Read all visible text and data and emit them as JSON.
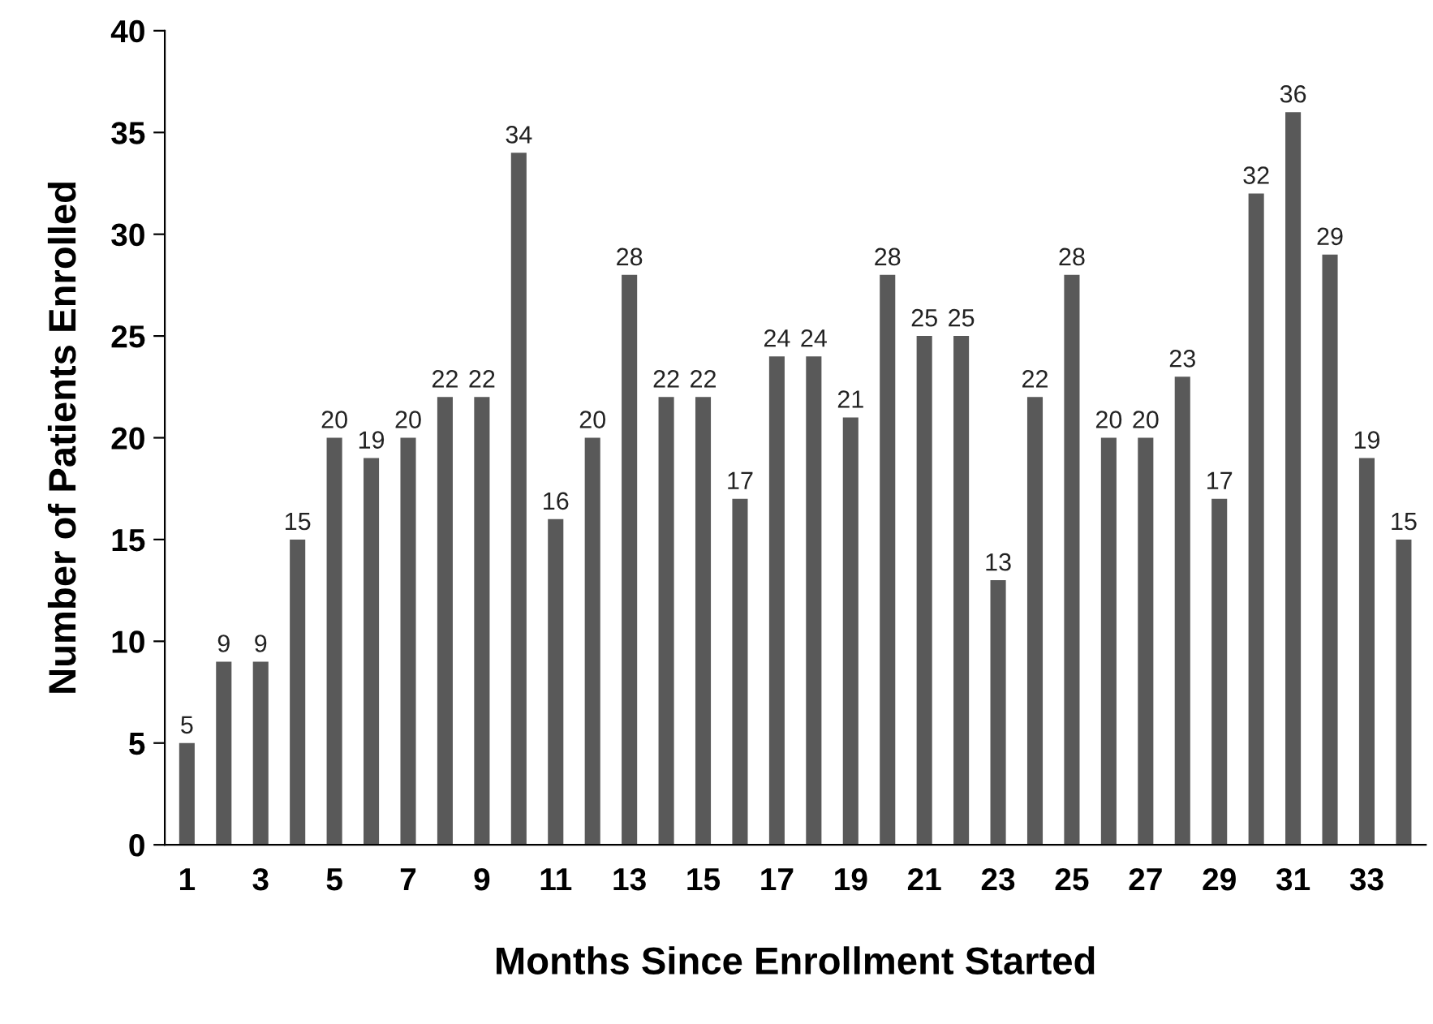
{
  "chart_data": {
    "type": "bar",
    "xlabel": "Months Since Enrollment Started",
    "ylabel": "Number of Patients Enrolled",
    "categories": [
      "1",
      null,
      "3",
      null,
      "5",
      null,
      "7",
      null,
      "9",
      null,
      "11",
      null,
      "13",
      null,
      "15",
      null,
      "17",
      null,
      "19",
      null,
      "21",
      null,
      "23",
      null,
      "25",
      null,
      "27",
      null,
      "29",
      null,
      "31",
      null,
      "33",
      null
    ],
    "values": [
      5,
      9,
      9,
      15,
      20,
      19,
      20,
      22,
      22,
      34,
      16,
      20,
      28,
      22,
      22,
      17,
      24,
      24,
      21,
      28,
      25,
      25,
      13,
      22,
      28,
      20,
      20,
      23,
      17,
      32,
      36,
      29,
      19,
      15
    ],
    "color": "#595959",
    "data_labels": true,
    "ylim": [
      0,
      40
    ],
    "yticks": [
      0,
      5,
      10,
      15,
      20,
      25,
      30,
      35,
      40
    ],
    "grid": false,
    "legend": false
  }
}
